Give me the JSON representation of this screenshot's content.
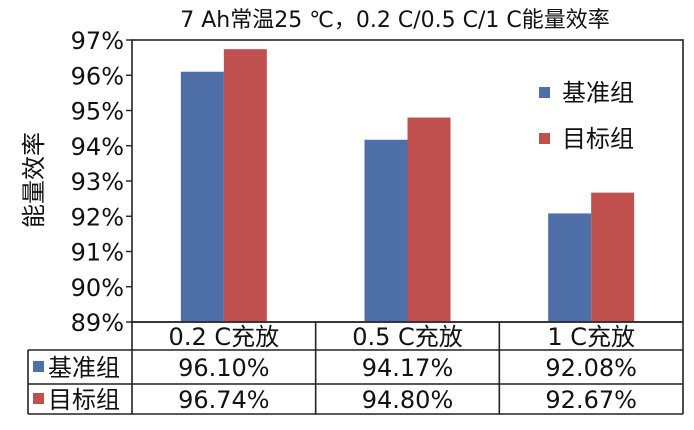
{
  "chart_data": {
    "type": "bar",
    "title": "7 Ah常温25 ℃，0.2 C/0.5 C/1 C能量效率",
    "ylabel": "能量效率",
    "xlabel": "",
    "categories": [
      "0.2 C充放",
      "0.5 C充放",
      "1 C充放"
    ],
    "yticks": [
      "89%",
      "90%",
      "91%",
      "92%",
      "93%",
      "94%",
      "95%",
      "96%",
      "97%"
    ],
    "ylim": [
      89,
      97
    ],
    "grid": false,
    "legend_position": "right",
    "series": [
      {
        "name": "基准组",
        "color": "#4f6fa8",
        "values": [
          96.1,
          94.17,
          92.08
        ],
        "labels": [
          "96.10%",
          "94.17%",
          "92.08%"
        ]
      },
      {
        "name": "目标组",
        "color": "#c0504d",
        "values": [
          96.74,
          94.8,
          92.67
        ],
        "labels": [
          "96.74%",
          "94.80%",
          "92.67%"
        ]
      }
    ]
  }
}
